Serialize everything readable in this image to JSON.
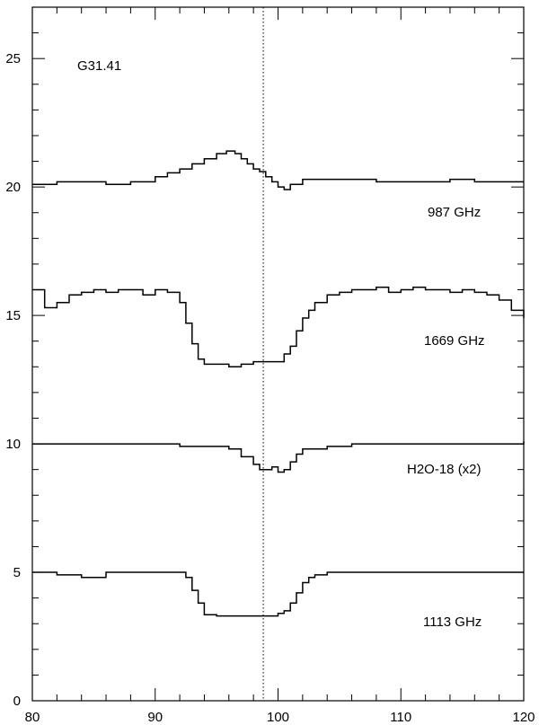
{
  "chart_data": {
    "type": "line",
    "title": "G31.41",
    "xlabel": "",
    "ylabel": "",
    "xlim": [
      80,
      120
    ],
    "ylim": [
      0,
      27
    ],
    "grid": false,
    "x_ticks": [
      80,
      90,
      100,
      110,
      120
    ],
    "y_ticks": [
      0,
      5,
      10,
      15,
      20,
      25
    ],
    "reference_line_x": 98.8,
    "series": [
      {
        "name": "987 GHz",
        "x": [
          80,
          82,
          84,
          86,
          88,
          90,
          91,
          92,
          93,
          94,
          95,
          95.8,
          96.5,
          97,
          97.5,
          98,
          98.5,
          99,
          99.5,
          100,
          100.5,
          101,
          102,
          104,
          106,
          108,
          110,
          112,
          114,
          116,
          118,
          120
        ],
        "y": [
          20.1,
          20.2,
          20.2,
          20.1,
          20.2,
          20.4,
          20.55,
          20.7,
          20.9,
          21.1,
          21.3,
          21.4,
          21.3,
          21.1,
          20.9,
          20.7,
          20.6,
          20.4,
          20.2,
          20.0,
          19.9,
          20.1,
          20.3,
          20.3,
          20.3,
          20.2,
          20.2,
          20.2,
          20.3,
          20.2,
          20.2,
          20.2
        ]
      },
      {
        "name": "1669 GHz",
        "x": [
          80,
          81,
          82,
          83,
          84,
          85,
          86,
          87,
          88,
          89,
          90,
          91,
          92,
          92.5,
          93,
          93.5,
          94,
          95,
          96,
          97,
          98,
          99,
          100,
          100.5,
          101,
          101.5,
          102,
          102.5,
          103,
          104,
          105,
          106,
          107,
          108,
          109,
          110,
          111,
          112,
          113,
          114,
          115,
          116,
          117,
          118,
          119,
          120
        ],
        "y": [
          16.0,
          15.3,
          15.5,
          15.8,
          15.9,
          16.0,
          15.9,
          16.0,
          16.0,
          15.8,
          16.0,
          15.9,
          15.5,
          14.7,
          13.9,
          13.3,
          13.1,
          13.1,
          13.0,
          13.1,
          13.2,
          13.2,
          13.2,
          13.5,
          13.8,
          14.4,
          14.9,
          15.2,
          15.5,
          15.8,
          15.9,
          16.0,
          16.0,
          16.1,
          15.9,
          16.0,
          16.1,
          16.0,
          16.0,
          15.9,
          16.0,
          15.9,
          15.8,
          15.6,
          15.2,
          14.9
        ]
      },
      {
        "name": "H2O-18 (x2)",
        "x": [
          80,
          82,
          84,
          86,
          88,
          90,
          92,
          94,
          95,
          96,
          97,
          98,
          98.5,
          99,
          99.5,
          100,
          100.5,
          101,
          101.5,
          102,
          104,
          106,
          108,
          110,
          112,
          114,
          116,
          118,
          120
        ],
        "y": [
          10.0,
          10.0,
          10.0,
          10.0,
          10.0,
          10.0,
          9.9,
          9.9,
          9.9,
          9.8,
          9.5,
          9.2,
          9.0,
          9.0,
          9.1,
          8.9,
          9.0,
          9.3,
          9.6,
          9.8,
          9.9,
          10.0,
          10.0,
          10.0,
          10.0,
          10.0,
          10.0,
          10.0,
          10.1
        ]
      },
      {
        "name": "1113 GHz",
        "x": [
          80,
          82,
          84,
          86,
          88,
          90,
          91,
          92,
          92.5,
          93,
          93.5,
          94,
          95,
          96,
          97,
          98,
          99,
          100,
          100.5,
          101,
          101.5,
          102,
          102.5,
          103,
          104,
          106,
          108,
          110,
          112,
          114,
          116,
          118,
          120
        ],
        "y": [
          5.0,
          4.9,
          4.8,
          5.0,
          5.0,
          5.0,
          5.0,
          5.0,
          4.8,
          4.3,
          3.8,
          3.35,
          3.3,
          3.3,
          3.3,
          3.3,
          3.3,
          3.4,
          3.5,
          3.8,
          4.2,
          4.6,
          4.8,
          4.9,
          5.0,
          5.0,
          5.0,
          5.0,
          5.0,
          5.0,
          5.0,
          5.0,
          5.0
        ]
      }
    ]
  }
}
